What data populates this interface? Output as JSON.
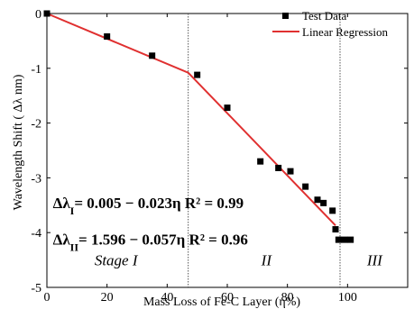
{
  "chart_data": {
    "type": "scatter",
    "title": "",
    "xlabel": "Mass Loss of Fe-C Layer (η%)",
    "ylabel": "Wavelength Shift ( Δλ nm)",
    "xlim": [
      0,
      120
    ],
    "ylim": [
      -5,
      0
    ],
    "xticks": [
      0,
      20,
      40,
      60,
      80,
      100
    ],
    "yticks": [
      0,
      -1,
      -2,
      -3,
      -4,
      -5
    ],
    "x_tick_labels": [
      "0",
      "20",
      "40",
      "60",
      "80",
      "100"
    ],
    "y_tick_labels": [
      "0",
      "-1",
      "-2",
      "-3",
      "-4",
      "-5"
    ],
    "grid": false,
    "legend_position": "top-right",
    "series": [
      {
        "name": "Test Data",
        "marker": "square",
        "color": "#000000",
        "points": [
          {
            "x": 0,
            "y": 0.0
          },
          {
            "x": 20,
            "y": -0.42
          },
          {
            "x": 35,
            "y": -0.77
          },
          {
            "x": 50,
            "y": -1.12
          },
          {
            "x": 60,
            "y": -1.72
          },
          {
            "x": 71,
            "y": -2.7
          },
          {
            "x": 77,
            "y": -2.82
          },
          {
            "x": 81,
            "y": -2.88
          },
          {
            "x": 86,
            "y": -3.16
          },
          {
            "x": 90,
            "y": -3.4
          },
          {
            "x": 92,
            "y": -3.46
          },
          {
            "x": 95,
            "y": -3.6
          },
          {
            "x": 96,
            "y": -3.94
          },
          {
            "x": 97,
            "y": -4.13
          },
          {
            "x": 99,
            "y": -4.13
          },
          {
            "x": 101,
            "y": -4.13
          }
        ]
      },
      {
        "name": "Linear Regression",
        "marker": "line",
        "color": "#e03030",
        "points": [
          {
            "x": 0,
            "y": 0.0
          },
          {
            "x": 47,
            "y": -1.08
          },
          {
            "x": 96,
            "y": -3.87
          }
        ]
      }
    ],
    "vlines": [
      47,
      97.5
    ],
    "stage_labels": [
      {
        "text": "Stage I",
        "x": 23,
        "y": -4.5
      },
      {
        "text": "II",
        "x": 73,
        "y": -4.5
      },
      {
        "text": "III",
        "x": 109,
        "y": -4.5
      }
    ],
    "annotations": [
      {
        "pre": "Δλ",
        "sub": "I",
        "post": "= 0.005 − 0.023η R² = 0.99",
        "x": 2,
        "y": -3.45
      },
      {
        "pre": "Δλ",
        "sub": "II",
        "post": "= 1.596 − 0.057η R² = 0.96",
        "x": 2,
        "y": -4.12
      }
    ]
  }
}
